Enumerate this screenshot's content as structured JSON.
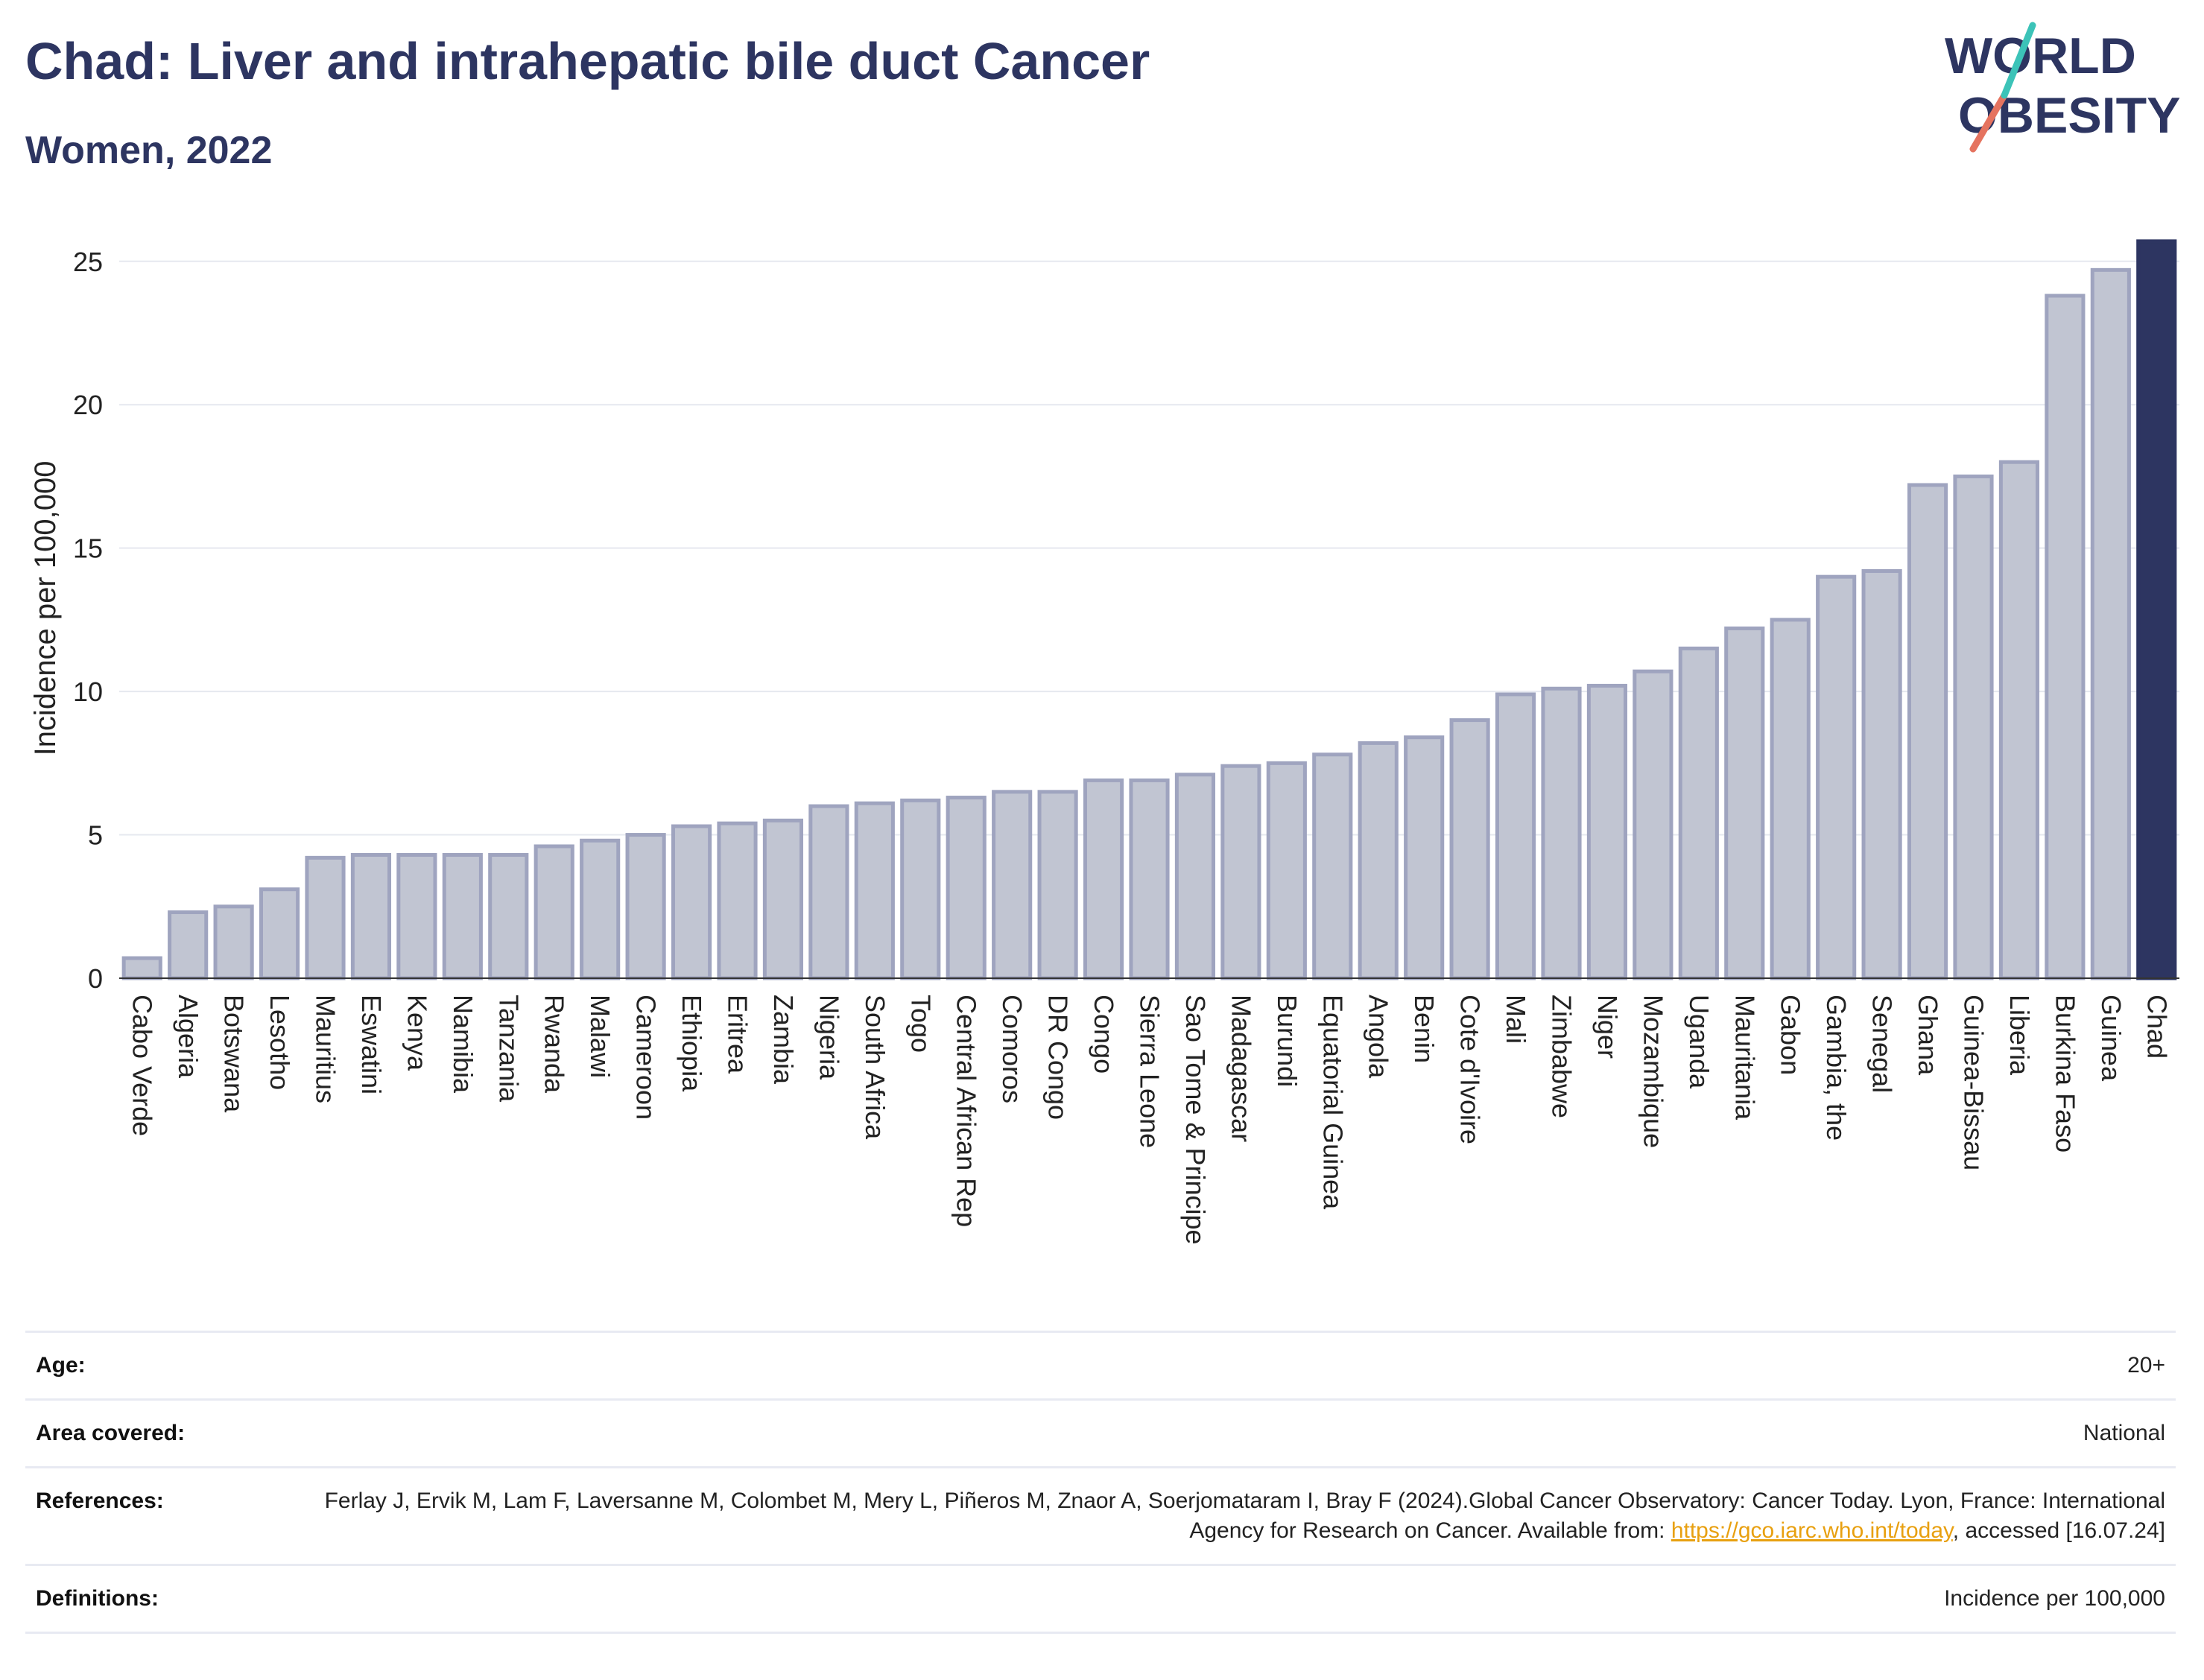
{
  "header": {
    "title": "Chad: Liver and intrahepatic bile duct Cancer",
    "subtitle": "Women, 2022"
  },
  "logo": {
    "line1": "WORLD",
    "line2": "OBESITY"
  },
  "colors": {
    "highlight": "#2d3561",
    "bar_fill": "#c1c5d2",
    "bar_stroke": "#9fa4bf",
    "grid": "#e6e8ef"
  },
  "chart_data": {
    "type": "bar",
    "ylabel": "Incidence per 100,000",
    "xlabel": "",
    "ylim": [
      0,
      25.8
    ],
    "yticks": [
      0,
      5,
      10,
      15,
      20,
      25
    ],
    "grid": true,
    "highlight": "Chad",
    "categories": [
      "Cabo Verde",
      "Algeria",
      "Botswana",
      "Lesotho",
      "Mauritius",
      "Eswatini",
      "Kenya",
      "Namibia",
      "Tanzania",
      "Rwanda",
      "Malawi",
      "Cameroon",
      "Ethiopia",
      "Eritrea",
      "Zambia",
      "Nigeria",
      "South Africa",
      "Togo",
      "Central African Rep",
      "Comoros",
      "DR Congo",
      "Congo",
      "Sierra Leone",
      "Sao Tome & Principe",
      "Madagascar",
      "Burundi",
      "Equatorial Guinea",
      "Angola",
      "Benin",
      "Cote d'Ivoire",
      "Mali",
      "Zimbabwe",
      "Niger",
      "Mozambique",
      "Uganda",
      "Mauritania",
      "Gabon",
      "Gambia, the",
      "Senegal",
      "Ghana",
      "Guinea-Bissau",
      "Liberia",
      "Burkina Faso",
      "Guinea",
      "Chad"
    ],
    "values": [
      0.7,
      2.3,
      2.5,
      3.1,
      4.2,
      4.3,
      4.3,
      4.3,
      4.3,
      4.6,
      4.8,
      5.0,
      5.3,
      5.4,
      5.5,
      6.0,
      6.1,
      6.2,
      6.3,
      6.5,
      6.5,
      6.9,
      6.9,
      7.1,
      7.4,
      7.5,
      7.8,
      8.2,
      8.4,
      9.0,
      9.9,
      10.1,
      10.2,
      10.7,
      11.5,
      12.2,
      12.5,
      14.0,
      14.2,
      17.2,
      17.5,
      18.0,
      23.8,
      24.7,
      25.7
    ]
  },
  "meta": {
    "age_label": "Age:",
    "age_value": "20+",
    "area_label": "Area covered:",
    "area_value": "National",
    "refs_label": "References:",
    "refs_text1": "Ferlay J, Ervik M, Lam F, Laversanne M, Colombet M, Mery L, Piñeros M, Znaor A, Soerjomataram I, Bray F (2024).Global Cancer Observatory: Cancer Today. Lyon, France: International Agency for Research on Cancer. Available from: ",
    "refs_link": "https://gco.iarc.who.int/today",
    "refs_text2": ", accessed [16.07.24]",
    "defs_label": "Definitions:",
    "defs_value": "Incidence per 100,000"
  }
}
